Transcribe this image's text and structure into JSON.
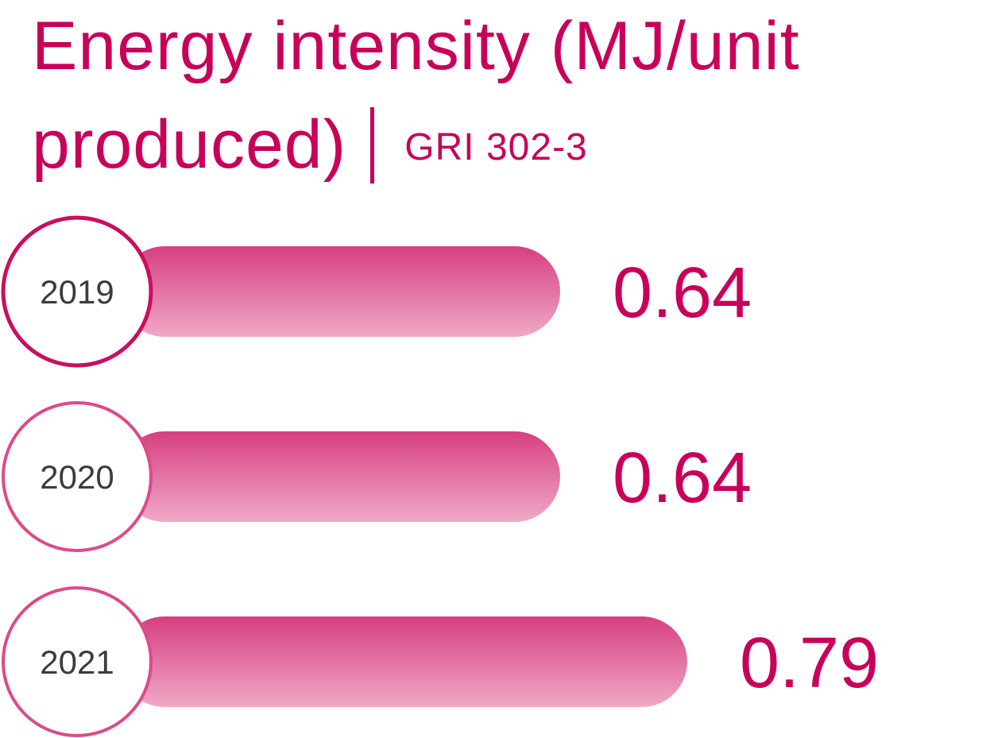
{
  "title": {
    "line1": "Energy intensity (MJ/unit",
    "line2": "produced)",
    "reference": "GRI 302-3"
  },
  "colors": {
    "accent": "#c8005a",
    "bar_top": "#d63f81",
    "bar_bottom": "#f0a9c6",
    "ring_dark": "#c80f60",
    "ring_light": "#dc4a8a",
    "year_text": "#3c3c3c"
  },
  "chart_data": {
    "type": "bar",
    "orientation": "horizontal",
    "categories": [
      "2019",
      "2020",
      "2021"
    ],
    "values": [
      0.64,
      0.64,
      0.79
    ],
    "value_labels": [
      "0.64",
      "0.64",
      "0.79"
    ],
    "title": "Energy intensity (MJ/unit produced)",
    "xlabel": "",
    "ylabel": "",
    "grid": false,
    "legend": "none"
  }
}
